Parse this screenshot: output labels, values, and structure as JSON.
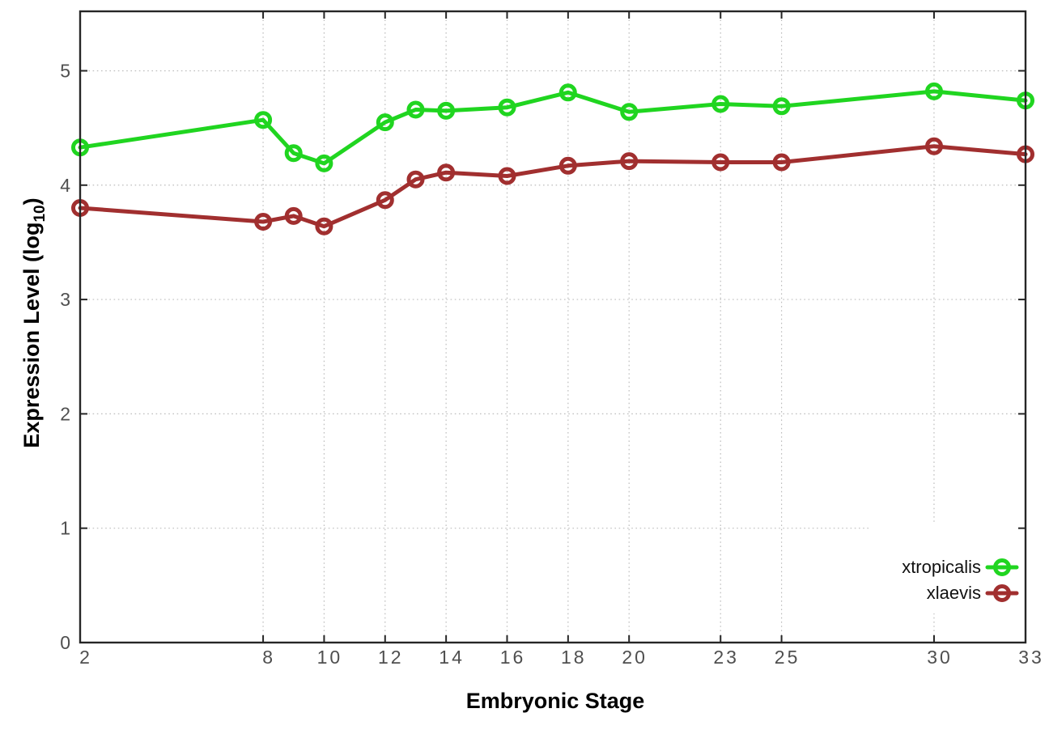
{
  "chart_data": {
    "type": "line",
    "title": "",
    "xlabel": "Embryonic Stage",
    "ylabel": "Expression Level (log10)",
    "ylabel_parts": {
      "main": "Expression Level (log",
      "sub": "10",
      "close": ")"
    },
    "x": [
      2,
      8,
      9,
      10,
      12,
      13,
      14,
      16,
      18,
      20,
      23,
      25,
      30,
      33
    ],
    "series": [
      {
        "name": "xtropicalis",
        "color": "#20d520",
        "values": [
          4.33,
          4.57,
          4.28,
          4.19,
          4.55,
          4.66,
          4.65,
          4.68,
          4.81,
          4.64,
          4.71,
          4.69,
          4.82,
          4.74
        ]
      },
      {
        "name": "xlaevis",
        "color": "#a12f2f",
        "values": [
          3.8,
          3.68,
          3.73,
          3.64,
          3.87,
          4.05,
          4.11,
          4.08,
          4.17,
          4.21,
          4.2,
          4.2,
          4.34,
          4.27
        ]
      }
    ],
    "xticks": [
      2,
      8,
      10,
      12,
      14,
      16,
      18,
      20,
      23,
      25,
      30,
      33
    ],
    "yticks": [
      0,
      1,
      2,
      3,
      4,
      5
    ],
    "xlim": [
      2,
      33
    ],
    "ylim": [
      0,
      5.52
    ],
    "grid": true,
    "grid_style": "dotted",
    "legend_position": "bottom-right-inside",
    "marker": "open-circle"
  },
  "colors": {
    "background": "#ffffff",
    "axis": "#262626",
    "grid": "#bdbdbd",
    "tick_text": "#4f4f4f",
    "label_text": "#000000",
    "legend_text": "#111111",
    "legend_box": "#ffffff"
  }
}
